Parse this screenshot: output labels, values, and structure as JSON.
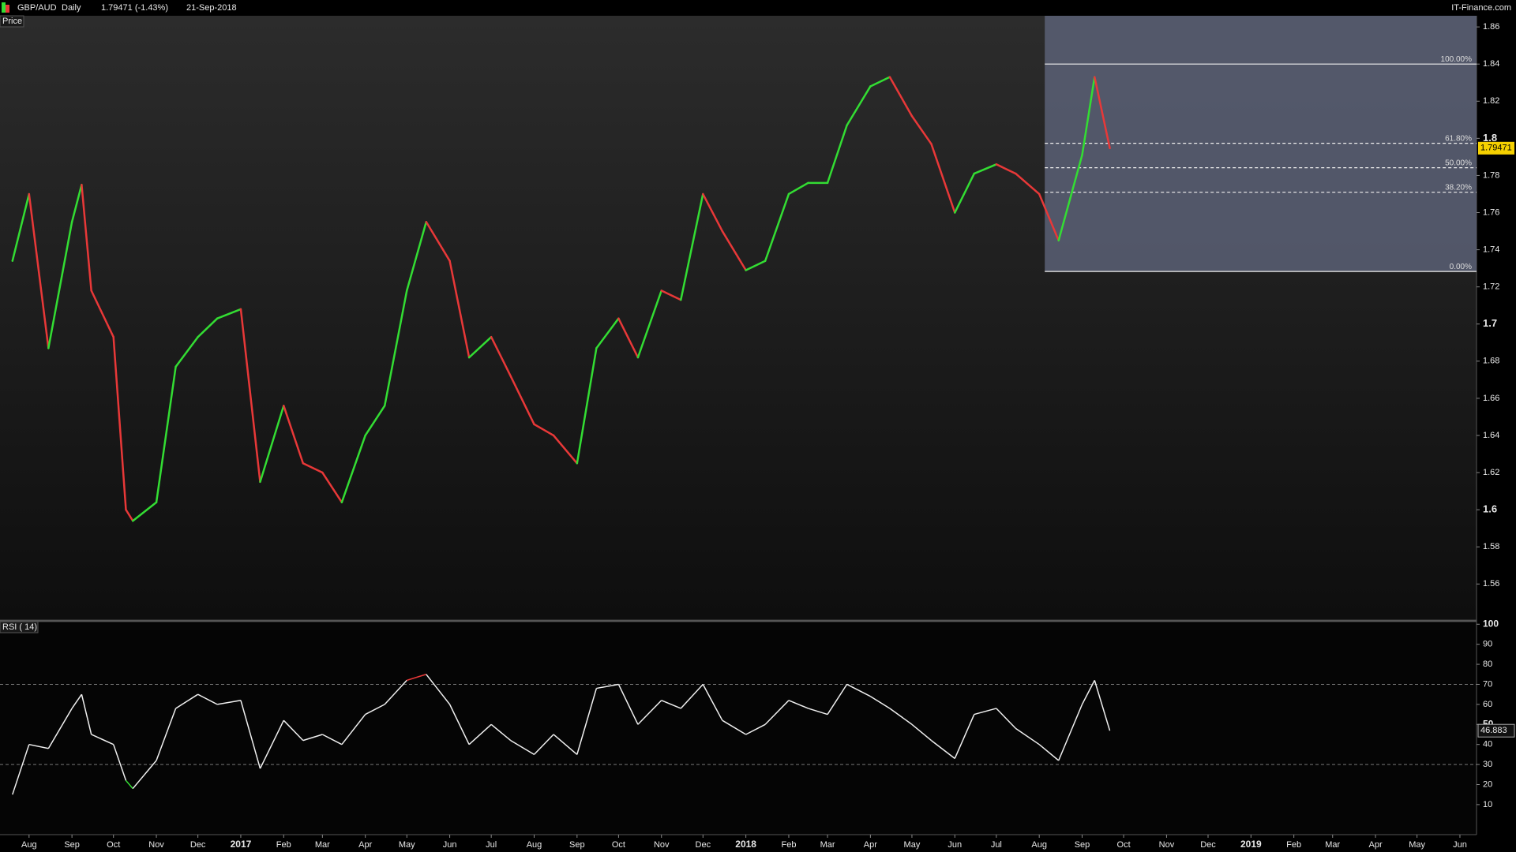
{
  "header": {
    "symbol": "GBP/AUD",
    "interval": "Daily",
    "quote": "1.79471 (-1.43%)",
    "date": "21-Sep-2018",
    "brand": "IT-Finance.com"
  },
  "chart_data": {
    "type": "line",
    "title": "Price",
    "up_color": "#33dd33",
    "down_color": "#e83838",
    "xlim": [
      "2016-07-11",
      "2019-06-13"
    ],
    "xticks": [
      {
        "value": "2016-08-01",
        "label": "Aug"
      },
      {
        "value": "2016-09-01",
        "label": "Sep"
      },
      {
        "value": "2016-10-01",
        "label": "Oct"
      },
      {
        "value": "2016-11-01",
        "label": "Nov"
      },
      {
        "value": "2016-12-01",
        "label": "Dec"
      },
      {
        "value": "2017-01-01",
        "label": "2017"
      },
      {
        "value": "2017-02-01",
        "label": "Feb"
      },
      {
        "value": "2017-03-01",
        "label": "Mar"
      },
      {
        "value": "2017-04-01",
        "label": "Apr"
      },
      {
        "value": "2017-05-01",
        "label": "May"
      },
      {
        "value": "2017-06-01",
        "label": "Jun"
      },
      {
        "value": "2017-07-01",
        "label": "Jul"
      },
      {
        "value": "2017-08-01",
        "label": "Aug"
      },
      {
        "value": "2017-09-01",
        "label": "Sep"
      },
      {
        "value": "2017-10-01",
        "label": "Oct"
      },
      {
        "value": "2017-11-01",
        "label": "Nov"
      },
      {
        "value": "2017-12-01",
        "label": "Dec"
      },
      {
        "value": "2018-01-01",
        "label": "2018"
      },
      {
        "value": "2018-02-01",
        "label": "Feb"
      },
      {
        "value": "2018-03-01",
        "label": "Mar"
      },
      {
        "value": "2018-04-01",
        "label": "Apr"
      },
      {
        "value": "2018-05-01",
        "label": "May"
      },
      {
        "value": "2018-06-01",
        "label": "Jun"
      },
      {
        "value": "2018-07-01",
        "label": "Jul"
      },
      {
        "value": "2018-08-01",
        "label": "Aug"
      },
      {
        "value": "2018-09-01",
        "label": "Sep"
      },
      {
        "value": "2018-10-01",
        "label": "Oct"
      },
      {
        "value": "2018-11-01",
        "label": "Nov"
      },
      {
        "value": "2018-12-01",
        "label": "Dec"
      },
      {
        "value": "2019-01-01",
        "label": "2019"
      },
      {
        "value": "2019-02-01",
        "label": "Feb"
      },
      {
        "value": "2019-03-01",
        "label": "Mar"
      },
      {
        "value": "2019-04-01",
        "label": "Apr"
      },
      {
        "value": "2019-05-01",
        "label": "May"
      },
      {
        "value": "2019-06-01",
        "label": "Jun"
      }
    ],
    "x": [
      "2016-07-20",
      "2016-08-01",
      "2016-08-15",
      "2016-09-01",
      "2016-09-08",
      "2016-09-15",
      "2016-10-01",
      "2016-10-10",
      "2016-10-15",
      "2016-11-01",
      "2016-11-15",
      "2016-12-01",
      "2016-12-15",
      "2017-01-01",
      "2017-01-15",
      "2017-02-01",
      "2017-02-15",
      "2017-03-01",
      "2017-03-15",
      "2017-04-01",
      "2017-04-15",
      "2017-05-01",
      "2017-05-15",
      "2017-06-01",
      "2017-06-15",
      "2017-07-01",
      "2017-07-15",
      "2017-08-01",
      "2017-08-15",
      "2017-09-01",
      "2017-09-15",
      "2017-10-01",
      "2017-10-15",
      "2017-11-01",
      "2017-11-15",
      "2017-12-01",
      "2017-12-15",
      "2018-01-01",
      "2018-01-15",
      "2018-02-01",
      "2018-02-15",
      "2018-03-01",
      "2018-03-15",
      "2018-04-01",
      "2018-04-15",
      "2018-05-01",
      "2018-05-15",
      "2018-06-01",
      "2018-06-15",
      "2018-07-01",
      "2018-07-15",
      "2018-08-01",
      "2018-08-15",
      "2018-09-01",
      "2018-09-10",
      "2018-09-21"
    ],
    "values": [
      1.734,
      1.77,
      1.687,
      1.755,
      1.775,
      1.718,
      1.693,
      1.6,
      1.594,
      1.604,
      1.677,
      1.693,
      1.703,
      1.708,
      1.615,
      1.656,
      1.625,
      1.62,
      1.604,
      1.64,
      1.656,
      1.718,
      1.755,
      1.734,
      1.682,
      1.693,
      1.672,
      1.646,
      1.64,
      1.625,
      1.687,
      1.703,
      1.682,
      1.718,
      1.713,
      1.77,
      1.75,
      1.729,
      1.734,
      1.77,
      1.776,
      1.776,
      1.807,
      1.828,
      1.833,
      1.812,
      1.797,
      1.76,
      1.781,
      1.786,
      1.781,
      1.77,
      1.745,
      1.791,
      1.833,
      1.79471
    ],
    "ylim": [
      1.541,
      1.866
    ],
    "yticks": [
      1.56,
      1.58,
      1.6,
      1.62,
      1.64,
      1.66,
      1.68,
      1.7,
      1.72,
      1.74,
      1.76,
      1.78,
      1.8,
      1.82,
      1.84,
      1.86
    ],
    "fib": {
      "start": "2018-08-05",
      "low": 1.7283,
      "high": 1.84,
      "color": "#5a6076",
      "levels": [
        {
          "value": 100,
          "label": "100.00%"
        },
        {
          "value": 61.8,
          "label": "61.80%"
        },
        {
          "value": 50,
          "label": "50.00%"
        },
        {
          "value": 38.2,
          "label": "38.20%"
        },
        {
          "value": 0,
          "label": "0.00%"
        }
      ]
    },
    "rsi": {
      "title": "RSI ( 14)",
      "color": "#f0f0f0",
      "overbought_color": "#e83838",
      "oversold_color": "#33dd33",
      "values": [
        15,
        40,
        38,
        58,
        65,
        45,
        40,
        22,
        18,
        32,
        58,
        65,
        60,
        62,
        28,
        52,
        42,
        45,
        40,
        55,
        60,
        72,
        75,
        60,
        40,
        50,
        42,
        35,
        45,
        35,
        68,
        70,
        50,
        62,
        58,
        70,
        52,
        45,
        50,
        62,
        58,
        55,
        70,
        64,
        58,
        50,
        42,
        33,
        55,
        58,
        48,
        40,
        32,
        60,
        72,
        46.883
      ],
      "ylim": [
        -5,
        100.5
      ],
      "yticks": [
        10,
        20,
        30,
        40,
        50,
        60,
        70,
        80,
        90,
        100
      ],
      "levels": [
        30,
        70
      ]
    }
  }
}
